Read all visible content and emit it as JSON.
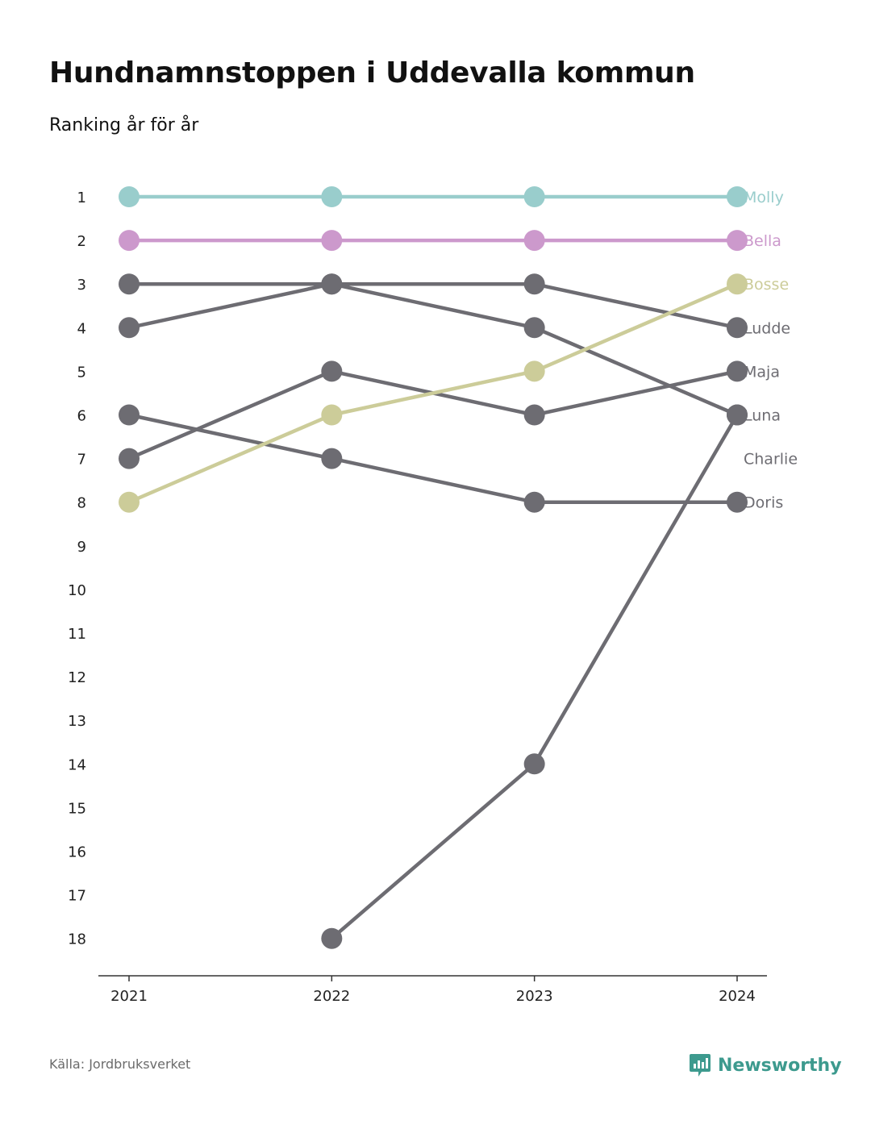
{
  "title": "Hundnamnstoppen i Uddevalla kommun",
  "subtitle": "Ranking år för år",
  "source": "Källa: Jordbruksverket",
  "brand": "Newsworthy",
  "colors": {
    "molly": "#99cdcc",
    "bella": "#cc99cc",
    "bosse": "#cccc99",
    "gray": "#6d6c72",
    "axis": "#333333",
    "brand": "#3d9a8e"
  },
  "chart_data": {
    "type": "line",
    "x": [
      "2021",
      "2022",
      "2023",
      "2024"
    ],
    "y_ticks": [
      1,
      2,
      3,
      4,
      5,
      6,
      7,
      8,
      9,
      10,
      11,
      12,
      13,
      14,
      15,
      16,
      17,
      18
    ],
    "ylim": [
      1,
      18
    ],
    "y_inverted": true,
    "series": [
      {
        "name": "Molly",
        "color": "molly",
        "values": [
          1,
          1,
          1,
          1
        ]
      },
      {
        "name": "Bella",
        "color": "bella",
        "values": [
          2,
          2,
          2,
          2
        ]
      },
      {
        "name": "Bosse",
        "color": "bosse",
        "values": [
          8,
          6,
          5,
          3
        ]
      },
      {
        "name": "Ludde",
        "color": "gray",
        "values": [
          3,
          3,
          3,
          4
        ]
      },
      {
        "name": "Maja",
        "color": "gray",
        "values": [
          7,
          5,
          6,
          5
        ]
      },
      {
        "name": "Luna",
        "color": "gray",
        "values": [
          4,
          3,
          4,
          6
        ]
      },
      {
        "name": "Charlie",
        "color": "gray",
        "values": [
          null,
          18,
          14,
          6
        ]
      },
      {
        "name": "Doris",
        "color": "gray",
        "values": [
          6,
          7,
          8,
          8
        ]
      }
    ],
    "label_ranks": {
      "Charlie": 7
    }
  }
}
